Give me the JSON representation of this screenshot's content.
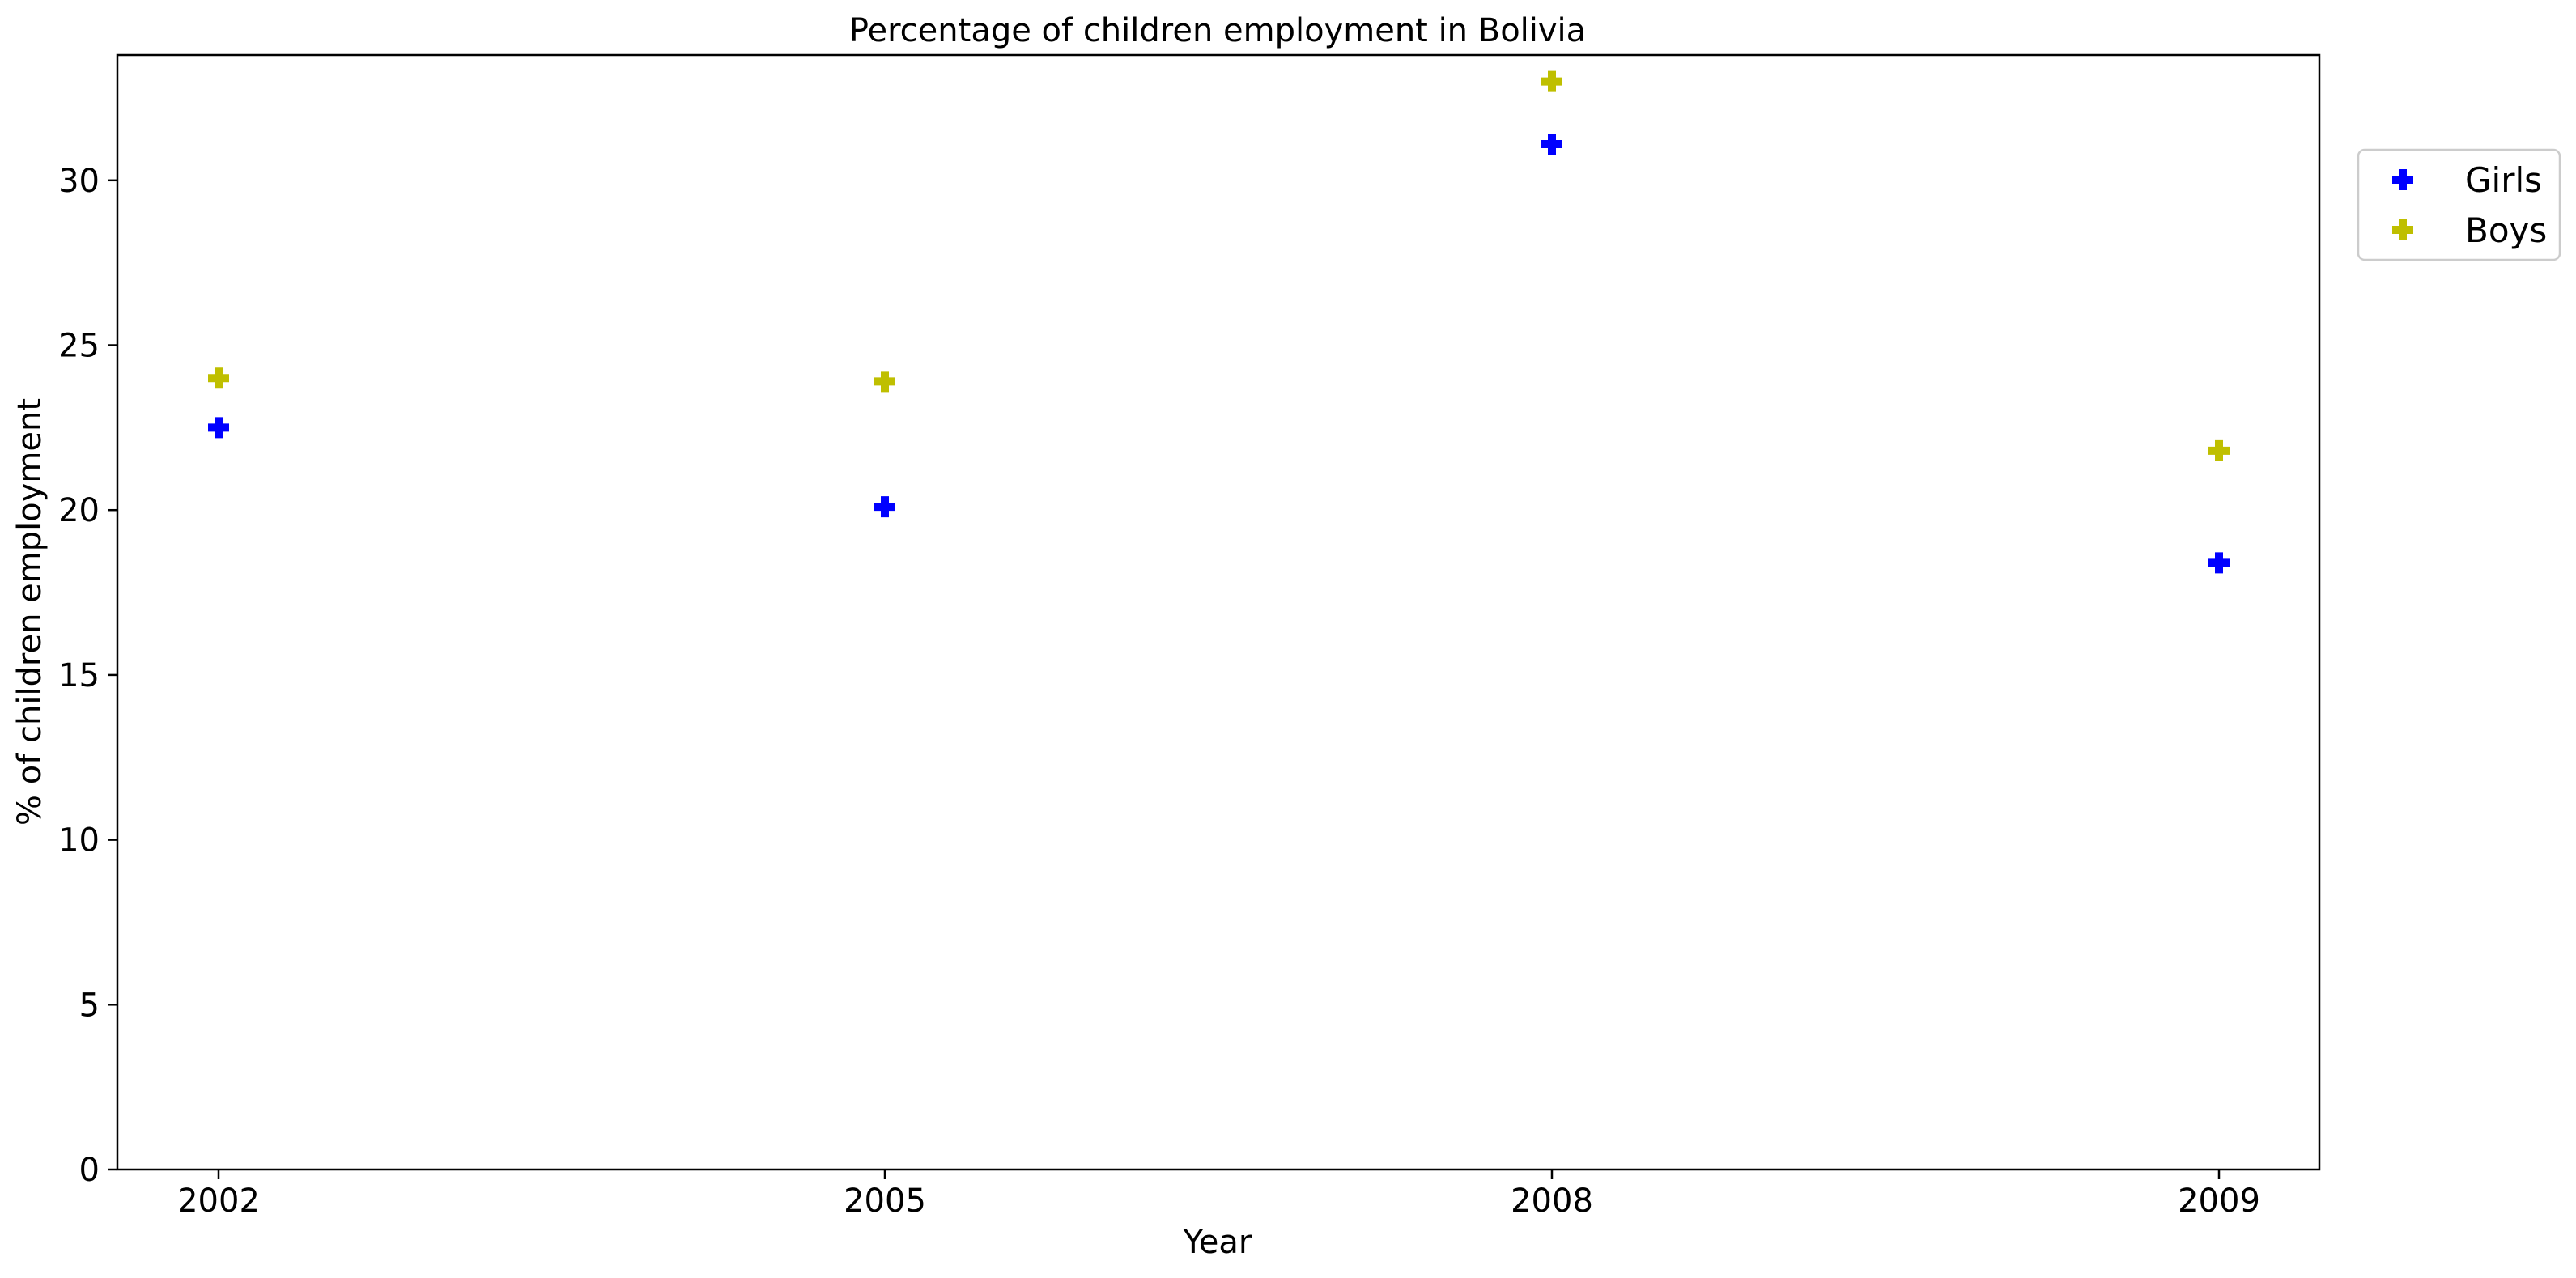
{
  "chart_data": {
    "type": "scatter",
    "title": "Percentage of children employment in Bolivia",
    "xlabel": "Year",
    "ylabel": "% of children employment",
    "categories": [
      "2002",
      "2005",
      "2008",
      "2009"
    ],
    "ylim": [
      0,
      33.8
    ],
    "yticks": [
      0,
      5,
      10,
      15,
      20,
      25,
      30
    ],
    "grid": false,
    "legend_position": "upper-right-outside",
    "marker": "plus-filled",
    "series": [
      {
        "name": "Girls",
        "color": "#0000ff",
        "values": [
          22.5,
          20.1,
          31.1,
          18.4
        ]
      },
      {
        "name": "Boys",
        "color": "#bfbf00",
        "values": [
          24.0,
          23.9,
          33.0,
          21.8
        ]
      }
    ]
  }
}
